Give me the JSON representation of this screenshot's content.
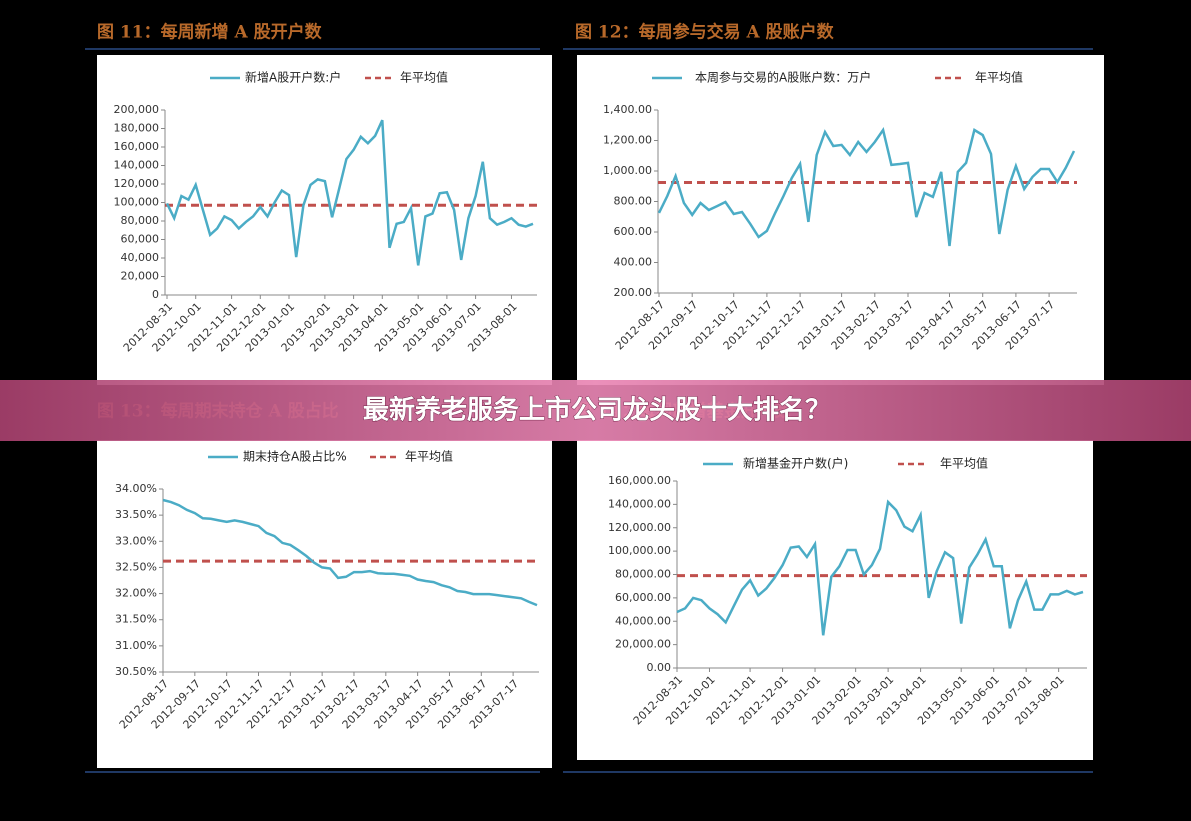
{
  "banner": "最新养老服务上市公司龙头股十大排名？",
  "chart_data": [
    {
      "type": "line",
      "title": "图 11：每周新增 A 股开户数",
      "categories": [
        "2012-08-31",
        null,
        null,
        null,
        "2012-10-01",
        null,
        null,
        null,
        null,
        "2012-11-01",
        null,
        null,
        null,
        "2012-12-01",
        null,
        null,
        null,
        "2013-01-01",
        null,
        null,
        null,
        null,
        "2013-02-01",
        null,
        null,
        null,
        "2013-03-01",
        null,
        null,
        null,
        "2013-04-01",
        null,
        null,
        null,
        null,
        "2013-05-01",
        null,
        null,
        null,
        "2013-06-01",
        null,
        null,
        null,
        "2013-07-01",
        null,
        null,
        null,
        null,
        "2013-08-01",
        null,
        null,
        null
      ],
      "series": [
        {
          "name": "新增A股开户数:户",
          "color": "#4bacc6",
          "values": [
            99000,
            83000,
            107000,
            103000,
            119000,
            92000,
            65000,
            72000,
            85000,
            81000,
            72000,
            79000,
            85000,
            95000,
            85000,
            100000,
            113000,
            108000,
            41000,
            97000,
            119000,
            125000,
            123000,
            84000,
            115000,
            147000,
            157000,
            171000,
            164000,
            172000,
            189000,
            51000,
            77000,
            79000,
            94000,
            32000,
            85000,
            88000,
            110000,
            111000,
            92000,
            38000,
            83000,
            107000,
            144000,
            83000,
            76000,
            79000,
            83000,
            76000,
            74000,
            77000
          ]
        }
      ],
      "average": {
        "name": "年平均值",
        "value": 97000,
        "color": "#c0504d"
      },
      "ylim": [
        0,
        200000
      ],
      "yticks": [
        0,
        {
          "value": 20000,
          "label": "20,000"
        },
        {
          "value": 40000,
          "label": "40,000"
        },
        {
          "value": 60000,
          "label": "60,000"
        },
        {
          "value": 80000,
          "label": "80,000"
        },
        {
          "value": 100000,
          "label": "100,000"
        },
        {
          "value": 120000,
          "label": "120,000"
        },
        {
          "value": 140000,
          "label": "140,000"
        },
        {
          "value": 160000,
          "label": "160,000"
        },
        {
          "value": 180000,
          "label": "180,000"
        },
        {
          "value": 200000,
          "label": "200,000"
        }
      ]
    },
    {
      "type": "line",
      "title": "图 12：每周参与交易 A 股账户数",
      "categories": [
        "2012-08-17",
        null,
        null,
        null,
        "2012-09-17",
        null,
        null,
        null,
        null,
        "2012-10-17",
        null,
        null,
        null,
        "2012-11-17",
        null,
        null,
        null,
        "2012-12-17",
        null,
        null,
        null,
        null,
        "2013-01-17",
        null,
        null,
        null,
        "2013-02-17",
        null,
        null,
        null,
        "2013-03-17",
        null,
        null,
        null,
        null,
        "2013-04-17",
        null,
        null,
        null,
        "2013-05-17",
        null,
        null,
        null,
        "2013-06-17",
        null,
        null,
        null,
        "2013-07-17",
        null,
        null,
        null
      ],
      "series": [
        {
          "name": "本周参与交易的A股账户数：万户",
          "color": "#4bacc6",
          "values": [
            725,
            836,
            967,
            790,
            712,
            790,
            744,
            770,
            797,
            718,
            731,
            653,
            567,
            607,
            725,
            836,
            954,
            1046,
            666,
            1105,
            1256,
            1164,
            1171,
            1105,
            1190,
            1125,
            1190,
            1269,
            1040,
            1046,
            1053,
            698,
            856,
            830,
            994,
            508,
            994,
            1053,
            1269,
            1236,
            1112,
            587,
            876,
            1033,
            882,
            961,
            1013,
            1013,
            928,
            1020,
            1131
          ]
        }
      ],
      "average": {
        "name": "年平均值",
        "value": 925,
        "color": "#c0504d"
      },
      "ylim": [
        200,
        1400
      ],
      "yticks": [
        {
          "value": 200,
          "label": "200.00"
        },
        {
          "value": 400,
          "label": "400.00"
        },
        {
          "value": 600,
          "label": "600.00"
        },
        {
          "value": 800,
          "label": "800.00"
        },
        {
          "value": 1000,
          "label": "1,000.00"
        },
        {
          "value": 1200,
          "label": "1,200.00"
        },
        {
          "value": 1400,
          "label": "1,400.00"
        }
      ]
    },
    {
      "type": "line",
      "title": "图 13：每周期末持仓 A 股占比",
      "categories": [
        "2012-08-17",
        null,
        null,
        null,
        "2012-09-17",
        null,
        null,
        null,
        "2012-10-17",
        null,
        null,
        null,
        "2012-11-17",
        null,
        null,
        null,
        "2012-12-17",
        null,
        null,
        null,
        "2013-01-17",
        null,
        null,
        null,
        "2013-02-17",
        null,
        null,
        null,
        "2013-03-17",
        null,
        null,
        null,
        "2013-04-17",
        null,
        null,
        null,
        "2013-05-17",
        null,
        null,
        null,
        "2013-06-17",
        null,
        null,
        null,
        "2013-07-17",
        null,
        null,
        null
      ],
      "series": [
        {
          "name": "期末持仓A股占比%",
          "color": "#4bacc6",
          "values": [
            33.79,
            33.75,
            33.69,
            33.6,
            33.54,
            33.44,
            33.43,
            33.4,
            33.37,
            33.4,
            33.37,
            33.33,
            33.29,
            33.16,
            33.1,
            32.97,
            32.93,
            32.83,
            32.72,
            32.59,
            32.5,
            32.48,
            32.3,
            32.32,
            32.41,
            32.41,
            32.43,
            32.39,
            32.38,
            32.38,
            32.36,
            32.34,
            32.27,
            32.24,
            32.22,
            32.16,
            32.12,
            32.05,
            32.03,
            31.99,
            31.99,
            31.99,
            31.97,
            31.95,
            31.93,
            31.91,
            31.84,
            31.78
          ]
        }
      ],
      "average": {
        "name": "年平均值",
        "value": 32.62,
        "color": "#c0504d"
      },
      "ylim": [
        30.5,
        34
      ],
      "yticks": [
        {
          "value": 30.5,
          "label": "30.50%"
        },
        {
          "value": 31,
          "label": "31.00%"
        },
        {
          "value": 31.5,
          "label": "31.50%"
        },
        {
          "value": 32,
          "label": "32.00%"
        },
        {
          "value": 32.5,
          "label": "32.50%"
        },
        {
          "value": 33,
          "label": "33.00%"
        },
        {
          "value": 33.5,
          "label": "33.50%"
        },
        {
          "value": 34,
          "label": "34.00%"
        }
      ]
    },
    {
      "type": "line",
      "title": "图 14：每周新增基金开户数",
      "categories": [
        "2012-08-31",
        null,
        null,
        null,
        "2012-10-01",
        null,
        null,
        null,
        null,
        "2012-11-01",
        null,
        null,
        null,
        "2012-12-01",
        null,
        null,
        null,
        "2013-01-01",
        null,
        null,
        null,
        null,
        "2013-02-01",
        null,
        null,
        null,
        "2013-03-01",
        null,
        null,
        null,
        "2013-04-01",
        null,
        null,
        null,
        null,
        "2013-05-01",
        null,
        null,
        null,
        "2013-06-01",
        null,
        null,
        null,
        "2013-07-01",
        null,
        null,
        null,
        "2013-08-01",
        null,
        null,
        null
      ],
      "series": [
        {
          "name": "新增基金开户数(户)",
          "color": "#4bacc6",
          "values": [
            47900,
            51000,
            60000,
            58000,
            51000,
            46000,
            39000,
            53000,
            67000,
            75000,
            62000,
            68000,
            77000,
            88000,
            103000,
            104000,
            95000,
            106000,
            28000,
            78000,
            87000,
            101000,
            101000,
            80000,
            88000,
            102000,
            142000,
            135000,
            121000,
            117000,
            131000,
            60000,
            83000,
            99000,
            94000,
            38000,
            86000,
            97000,
            110000,
            87000,
            87000,
            34000,
            58000,
            74000,
            50000,
            50000,
            63000,
            63000,
            66000,
            63000,
            65000
          ]
        }
      ],
      "average": {
        "name": "年平均值",
        "value": 79000,
        "color": "#c0504d"
      },
      "ylim": [
        0,
        160000
      ],
      "yticks": [
        {
          "value": 0,
          "label": "0.00"
        },
        {
          "value": 20000,
          "label": "20,000.00"
        },
        {
          "value": 40000,
          "label": "40,000.00"
        },
        {
          "value": 60000,
          "label": "60,000.00"
        },
        {
          "value": 80000,
          "label": "80,000.00"
        },
        {
          "value": 100000,
          "label": "100,000.00"
        },
        {
          "value": 120000,
          "label": "120,000.00"
        },
        {
          "value": 140000,
          "label": "140,000.00"
        },
        {
          "value": 160000,
          "label": "160,000.00"
        }
      ]
    }
  ]
}
